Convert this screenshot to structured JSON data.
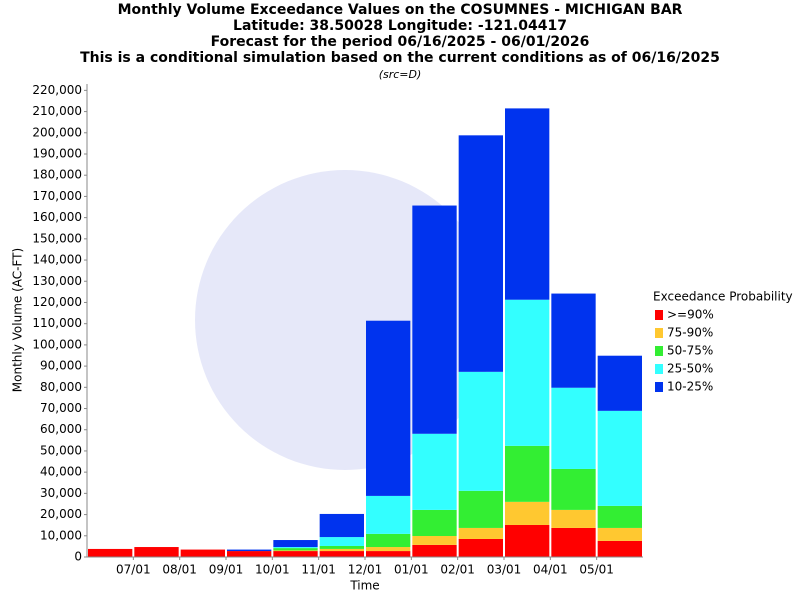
{
  "chart_data": {
    "type": "stacked_bar",
    "title": [
      "Monthly Volume Exceedance Values on the COSUMNES - MICHIGAN BAR",
      "Latitude: 38.50028 Longitude: -121.04417",
      "Forecast for the period 06/16/2025 - 06/01/2026",
      "This is a conditional simulation based on the current conditions as of 06/16/2025"
    ],
    "subtitle": "(src=D)",
    "x_label": "Time",
    "y_label": "Monthly Volume (AC-FT)",
    "legend_title": "Exceedance Probability",
    "legend": "right",
    "categories": [
      null,
      null,
      null,
      null,
      null,
      null,
      null,
      null,
      null,
      null,
      null,
      null
    ],
    "xticks": [
      {
        "value": 1,
        "label": "07/01"
      },
      {
        "value": 2,
        "label": "08/01"
      },
      {
        "value": 3,
        "label": "09/01"
      },
      {
        "value": 4,
        "label": "10/01"
      },
      {
        "value": 5,
        "label": "11/01"
      },
      {
        "value": 6,
        "label": "12/01"
      },
      {
        "value": 7,
        "label": "01/01"
      },
      {
        "value": 8,
        "label": "02/01"
      },
      {
        "value": 9,
        "label": "03/01"
      },
      {
        "value": 10,
        "label": "04/01"
      },
      {
        "value": 11,
        "label": "05/01"
      }
    ],
    "ylim": [
      0,
      223000
    ],
    "yticks": [
      0,
      {
        "value": 10000,
        "label": "10,000"
      },
      {
        "value": 20000,
        "label": "20,000"
      },
      {
        "value": 30000,
        "label": "30,000"
      },
      {
        "value": 40000,
        "label": "40,000"
      },
      {
        "value": 50000,
        "label": "50,000"
      },
      {
        "value": 60000,
        "label": "60,000"
      },
      {
        "value": 70000,
        "label": "70,000"
      },
      {
        "value": 80000,
        "label": "80,000"
      },
      {
        "value": 90000,
        "label": "90,000"
      },
      {
        "value": 100000,
        "label": "100,000"
      },
      {
        "value": 110000,
        "label": "110,000"
      },
      {
        "value": 120000,
        "label": "120,000"
      },
      {
        "value": 130000,
        "label": "130,000"
      },
      {
        "value": 140000,
        "label": "140,000"
      },
      {
        "value": 150000,
        "label": "150,000"
      },
      {
        "value": 160000,
        "label": "160,000"
      },
      {
        "value": 170000,
        "label": "170,000"
      },
      {
        "value": 180000,
        "label": "180,000"
      },
      {
        "value": 190000,
        "label": "190,000"
      },
      {
        "value": 200000,
        "label": "200,000"
      },
      {
        "value": 210000,
        "label": "210,000"
      },
      {
        "value": 220000,
        "label": "220,000"
      }
    ],
    "series": [
      {
        "name": ">=90%",
        "color": "#ff0000",
        "values": [
          3800,
          4700,
          3500,
          2800,
          2800,
          2800,
          2800,
          5700,
          8500,
          15100,
          13700,
          7600
        ]
      },
      {
        "name": "75-90%",
        "color": "#ffc830",
        "values": [
          0,
          0,
          0,
          0,
          300,
          1000,
          1900,
          4200,
          5200,
          10900,
          8500,
          6100
        ]
      },
      {
        "name": "50-75%",
        "color": "#33ee33",
        "values": [
          0,
          0,
          0,
          0,
          1100,
          1400,
          6200,
          12300,
          17500,
          26400,
          19300,
          10400
        ]
      },
      {
        "name": "25-50%",
        "color": "#33ffff",
        "values": [
          0,
          0,
          0,
          0,
          500,
          4200,
          17900,
          35900,
          56100,
          68900,
          38300,
          44800
        ]
      },
      {
        "name": "10-25%",
        "color": "#0033ee",
        "values": [
          0,
          0,
          0,
          700,
          3300,
          10900,
          82600,
          107600,
          111500,
          90200,
          44400,
          26000
        ]
      }
    ]
  }
}
